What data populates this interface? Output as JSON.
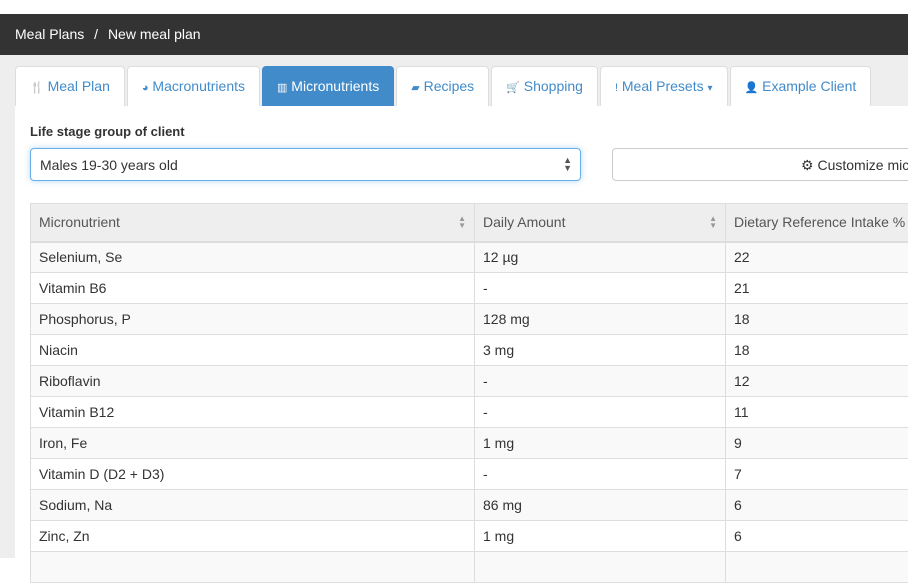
{
  "breadcrumb": {
    "items": [
      "Meal Plans",
      "New meal plan"
    ],
    "separator": "/"
  },
  "tabs": [
    {
      "label": "Meal Plan",
      "icon": "cutlery-icon",
      "glyph": "🍴"
    },
    {
      "label": "Macronutrients",
      "icon": "pie-chart-icon",
      "glyph": "◕"
    },
    {
      "label": "Micronutrients",
      "icon": "bar-chart-icon",
      "glyph": "▥",
      "active": true
    },
    {
      "label": "Recipes",
      "icon": "book-icon",
      "glyph": "▰"
    },
    {
      "label": "Shopping",
      "icon": "cart-icon",
      "glyph": "🛒"
    },
    {
      "label": "Meal Presets",
      "icon": "pin-icon",
      "glyph": "!",
      "caret": "▾"
    },
    {
      "label": "Example Client",
      "icon": "user-icon",
      "glyph": "👤"
    }
  ],
  "form": {
    "label": "Life stage group of client",
    "selected": "Males 19-30 years old",
    "customize_label": "Customize micr",
    "customize_icon": "⚙"
  },
  "table": {
    "headers": [
      "Micronutrient",
      "Daily Amount",
      "Dietary Reference Intake %"
    ],
    "rows": [
      [
        "Selenium, Se",
        "12 µg",
        "22"
      ],
      [
        "Vitamin B6",
        "-",
        "21"
      ],
      [
        "Phosphorus, P",
        "128 mg",
        "18"
      ],
      [
        "Niacin",
        "3 mg",
        "18"
      ],
      [
        "Riboflavin",
        "-",
        "12"
      ],
      [
        "Vitamin B12",
        "-",
        "11"
      ],
      [
        "Iron, Fe",
        "1 mg",
        "9"
      ],
      [
        "Vitamin D (D2 + D3)",
        "-",
        "7"
      ],
      [
        "Sodium, Na",
        "86 mg",
        "6"
      ],
      [
        "Zinc, Zn",
        "1 mg",
        "6"
      ],
      [
        "",
        "",
        ""
      ]
    ]
  },
  "colors": {
    "accent": "#428bca",
    "topbar": "#333333"
  }
}
